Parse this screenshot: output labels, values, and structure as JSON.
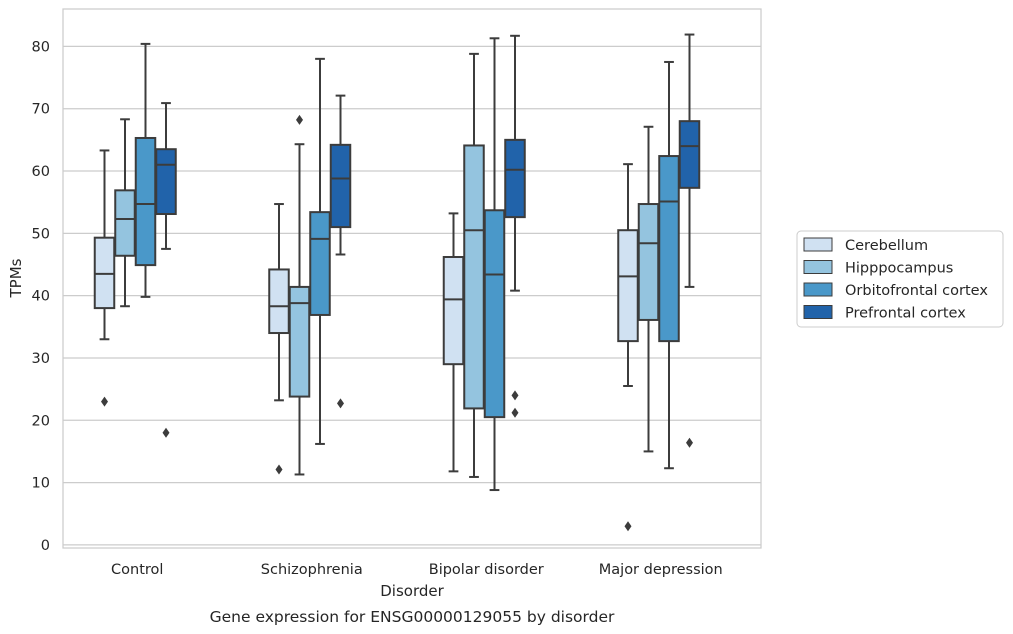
{
  "chart_data": {
    "type": "boxplot",
    "title": "Gene expression for ENSG00000129055 by disorder",
    "xlabel": "Disorder",
    "ylabel": "TPMs",
    "ylim": [
      -0.5,
      86
    ],
    "yticks": [
      0,
      10,
      20,
      30,
      40,
      50,
      60,
      70,
      80
    ],
    "grid": "horizontal",
    "legend_position": "right",
    "categories": [
      "Control",
      "Schizophrenia",
      "Bipolar disorder",
      "Major depression"
    ],
    "series": [
      {
        "name": "Cerebellum",
        "color": "#d0e1f2",
        "boxes": [
          {
            "whislo": 33.0,
            "q1": 38.0,
            "med": 43.5,
            "q3": 49.3,
            "whishi": 63.3,
            "fliers": [
              23.0
            ]
          },
          {
            "whislo": 23.2,
            "q1": 34.0,
            "med": 38.3,
            "q3": 44.2,
            "whishi": 54.7,
            "fliers": [
              12.1
            ]
          },
          {
            "whislo": 11.8,
            "q1": 29.0,
            "med": 39.4,
            "q3": 46.2,
            "whishi": 53.2,
            "fliers": []
          },
          {
            "whislo": 25.5,
            "q1": 32.7,
            "med": 43.1,
            "q3": 50.5,
            "whishi": 61.1,
            "fliers": [
              3.0
            ]
          }
        ]
      },
      {
        "name": "Hipppocampus",
        "color": "#94c4df",
        "boxes": [
          {
            "whislo": 38.3,
            "q1": 46.4,
            "med": 52.3,
            "q3": 56.9,
            "whishi": 68.3,
            "fliers": []
          },
          {
            "whislo": 11.3,
            "q1": 23.8,
            "med": 38.8,
            "q3": 41.4,
            "whishi": 64.3,
            "fliers": [
              68.2
            ]
          },
          {
            "whislo": 10.9,
            "q1": 21.9,
            "med": 50.5,
            "q3": 64.1,
            "whishi": 78.8,
            "fliers": []
          },
          {
            "whislo": 15.0,
            "q1": 36.1,
            "med": 48.4,
            "q3": 54.7,
            "whishi": 67.1,
            "fliers": []
          }
        ]
      },
      {
        "name": "Orbitofrontal cortex",
        "color": "#4a98c9",
        "boxes": [
          {
            "whislo": 39.8,
            "q1": 44.9,
            "med": 54.7,
            "q3": 65.3,
            "whishi": 80.4,
            "fliers": []
          },
          {
            "whislo": 16.2,
            "q1": 36.9,
            "med": 49.1,
            "q3": 53.4,
            "whishi": 78.0,
            "fliers": []
          },
          {
            "whislo": 8.8,
            "q1": 20.5,
            "med": 43.4,
            "q3": 53.7,
            "whishi": 81.3,
            "fliers": []
          },
          {
            "whislo": 12.3,
            "q1": 32.7,
            "med": 55.1,
            "q3": 62.4,
            "whishi": 77.5,
            "fliers": []
          }
        ]
      },
      {
        "name": "Prefrontal cortex",
        "color": "#2163aa",
        "boxes": [
          {
            "whislo": 47.5,
            "q1": 53.1,
            "med": 61.0,
            "q3": 63.5,
            "whishi": 70.9,
            "fliers": [
              18.0
            ]
          },
          {
            "whislo": 46.6,
            "q1": 51.0,
            "med": 58.8,
            "q3": 64.2,
            "whishi": 72.1,
            "fliers": [
              22.7
            ]
          },
          {
            "whislo": 40.8,
            "q1": 52.6,
            "med": 60.2,
            "q3": 65.0,
            "whishi": 81.7,
            "fliers": [
              24.0,
              21.2
            ]
          },
          {
            "whislo": 41.4,
            "q1": 57.3,
            "med": 64.0,
            "q3": 68.0,
            "whishi": 81.9,
            "fliers": [
              16.4
            ]
          }
        ]
      }
    ]
  }
}
